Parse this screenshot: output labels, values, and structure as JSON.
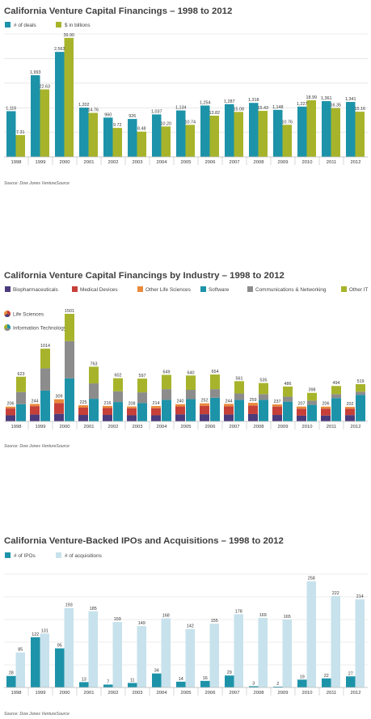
{
  "colors": {
    "teal": "#1d93a9",
    "olive": "#a7b42b",
    "light_blue": "#c7e2ec",
    "biopharma": "#4b3b7c",
    "meddev": "#c64039",
    "otherls": "#e98a3c",
    "software": "#1d93a9",
    "comms": "#8c8c8c",
    "otherit": "#a7b42b",
    "grid": "#d9d9d9",
    "axis": "#bdbdbd"
  },
  "chart_data": [
    {
      "type": "bar",
      "title": "California Venture Capital Financings – 1998 to 2012",
      "categories": [
        "1998",
        "1999",
        "2000",
        "2001",
        "2002",
        "2003",
        "2004",
        "2005",
        "2006",
        "2007",
        "2008",
        "2009",
        "2010",
        "2011",
        "2012"
      ],
      "series": [
        {
          "name": "# of deals",
          "values": [
            1116,
            1993,
            2563,
            1202,
            960,
            926,
            1037,
            1134,
            1254,
            1287,
            1318,
            1148,
            1227,
            1361,
            1341
          ],
          "labels": [
            "1,116",
            "1,993",
            "2,563",
            "1,202",
            "960",
            "926",
            "1,037",
            "1,134",
            "1,254",
            "1,287",
            "1,318",
            "1,148",
            "1,227",
            "1,361",
            "1,341"
          ]
        },
        {
          "name": "$ in billions",
          "values": [
            7.31,
            22.63,
            39.9,
            14.76,
            9.72,
            8.48,
            10.2,
            10.74,
            13.82,
            15.08,
            15.43,
            10.76,
            18.99,
            16.35,
            15.16
          ],
          "labels": [
            "7.31",
            "22.63",
            "39.90",
            "14.76",
            "9.72",
            "8.48",
            "10.20",
            "10.74",
            "13.82",
            "15.08",
            "15.43",
            "10.76",
            "18.99",
            "16.35",
            "15.16"
          ]
        }
      ],
      "source": "Source: Dow Jones VentureSource",
      "grid": true,
      "legend_position": "top-left"
    },
    {
      "type": "bar",
      "stacked": true,
      "title": "California Venture Capital Financings by Industry – 1998 to 2012",
      "categories": [
        "1998",
        "1999",
        "2000",
        "2001",
        "2002",
        "2003",
        "2004",
        "2005",
        "2006",
        "2007",
        "2008",
        "2009",
        "2010",
        "2011",
        "2012"
      ],
      "legend": [
        "Biopharmaceuticals",
        "Medical Devices",
        "Other Life Sciences",
        "Software",
        "Communications & Networking",
        "Other IT"
      ],
      "group_legend": [
        "Life Sciences",
        "Information Technology"
      ],
      "life_sciences": {
        "totals": [
          206,
          244,
          309,
          225,
          216,
          208,
          214,
          240,
          252,
          244,
          259,
          237,
          207,
          206,
          202
        ],
        "biopharmaceuticals": [
          85,
          95,
          105,
          90,
          90,
          85,
          85,
          98,
          100,
          95,
          102,
          90,
          80,
          82,
          88
        ],
        "medical_devices": [
          95,
          118,
          150,
          102,
          96,
          98,
          98,
          110,
          118,
          115,
          120,
          117,
          97,
          96,
          88
        ],
        "other_life_sciences": [
          26,
          31,
          54,
          33,
          30,
          25,
          31,
          32,
          34,
          34,
          37,
          30,
          30,
          28,
          26
        ]
      },
      "information_technology": {
        "totals": [
          623,
          1014,
          1501,
          763,
          602,
          597,
          649,
          640,
          654,
          561,
          535,
          486,
          398,
          494,
          519
        ],
        "software": [
          240,
          430,
          600,
          315,
          270,
          255,
          300,
          310,
          330,
          300,
          300,
          275,
          230,
          325,
          370
        ],
        "communications_networking": [
          170,
          310,
          520,
          215,
          150,
          150,
          150,
          130,
          120,
          90,
          80,
          70,
          60,
          55,
          45
        ],
        "other_it": [
          213,
          274,
          381,
          233,
          182,
          192,
          199,
          200,
          204,
          171,
          155,
          141,
          108,
          114,
          104
        ]
      },
      "source": "Source: Dow Jones VentureSource"
    },
    {
      "type": "bar",
      "title": "California Venture-Backed IPOs and Acquisitions – 1998 to 2012",
      "categories": [
        "1998",
        "1999",
        "2000",
        "2001",
        "2002",
        "2003",
        "2004",
        "2005",
        "2006",
        "2007",
        "2008",
        "2009",
        "2010",
        "2011",
        "2012"
      ],
      "series": [
        {
          "name": "# of IPOs",
          "values": [
            28,
            122,
            95,
            13,
            7,
            11,
            34,
            14,
            16,
            29,
            3,
            2,
            19,
            22,
            27
          ]
        },
        {
          "name": "# of acquisitions",
          "values": [
            85,
            131,
            193,
            185,
            159,
            149,
            168,
            142,
            155,
            178,
            169,
            165,
            258,
            222,
            214
          ]
        }
      ],
      "source": "Source: Dow Jones VentureSource",
      "grid": true,
      "legend_position": "top-left"
    }
  ]
}
